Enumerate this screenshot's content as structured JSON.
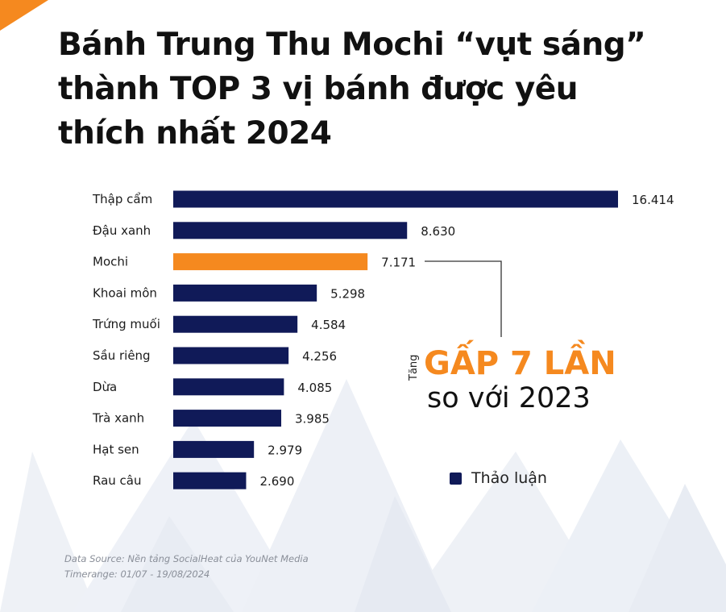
{
  "title": "Bánh Trung Thu Mochi “vụt sáng” thành TOP 3 vị bánh được yêu thích nhất 2024",
  "colors": {
    "bar": "#101a58",
    "highlight": "#f5891f",
    "accent": "#f5891f",
    "text": "#111111"
  },
  "chart_data": {
    "type": "bar",
    "orientation": "horizontal",
    "categories": [
      "Thập cẩm",
      "Đậu xanh",
      "Mochi",
      "Khoai môn",
      "Trứng muối",
      "Sầu riêng",
      "Dừa",
      "Trà xanh",
      "Hạt sen",
      "Rau câu"
    ],
    "values": [
      16414,
      8630,
      7171,
      5298,
      4584,
      4256,
      4085,
      3985,
      2979,
      2690
    ],
    "value_labels": [
      "16.414",
      "8.630",
      "7.171",
      "5.298",
      "4.584",
      "4.256",
      "4.085",
      "3.985",
      "2.979",
      "2.690"
    ],
    "highlight_category": "Mochi",
    "series": [
      {
        "name": "Thảo luận"
      }
    ],
    "legend_position": "bottom-right",
    "grid": false
  },
  "callout": {
    "prefix": "Tăng",
    "headline": "GẤP 7 LẦN",
    "subline": "so với 2023"
  },
  "legend": {
    "label": "Thảo luận"
  },
  "source": {
    "line1": "Data Source: Nền tảng SocialHeat của YouNet Media",
    "line2": "Timerange: 01/07 - 19/08/2024"
  }
}
